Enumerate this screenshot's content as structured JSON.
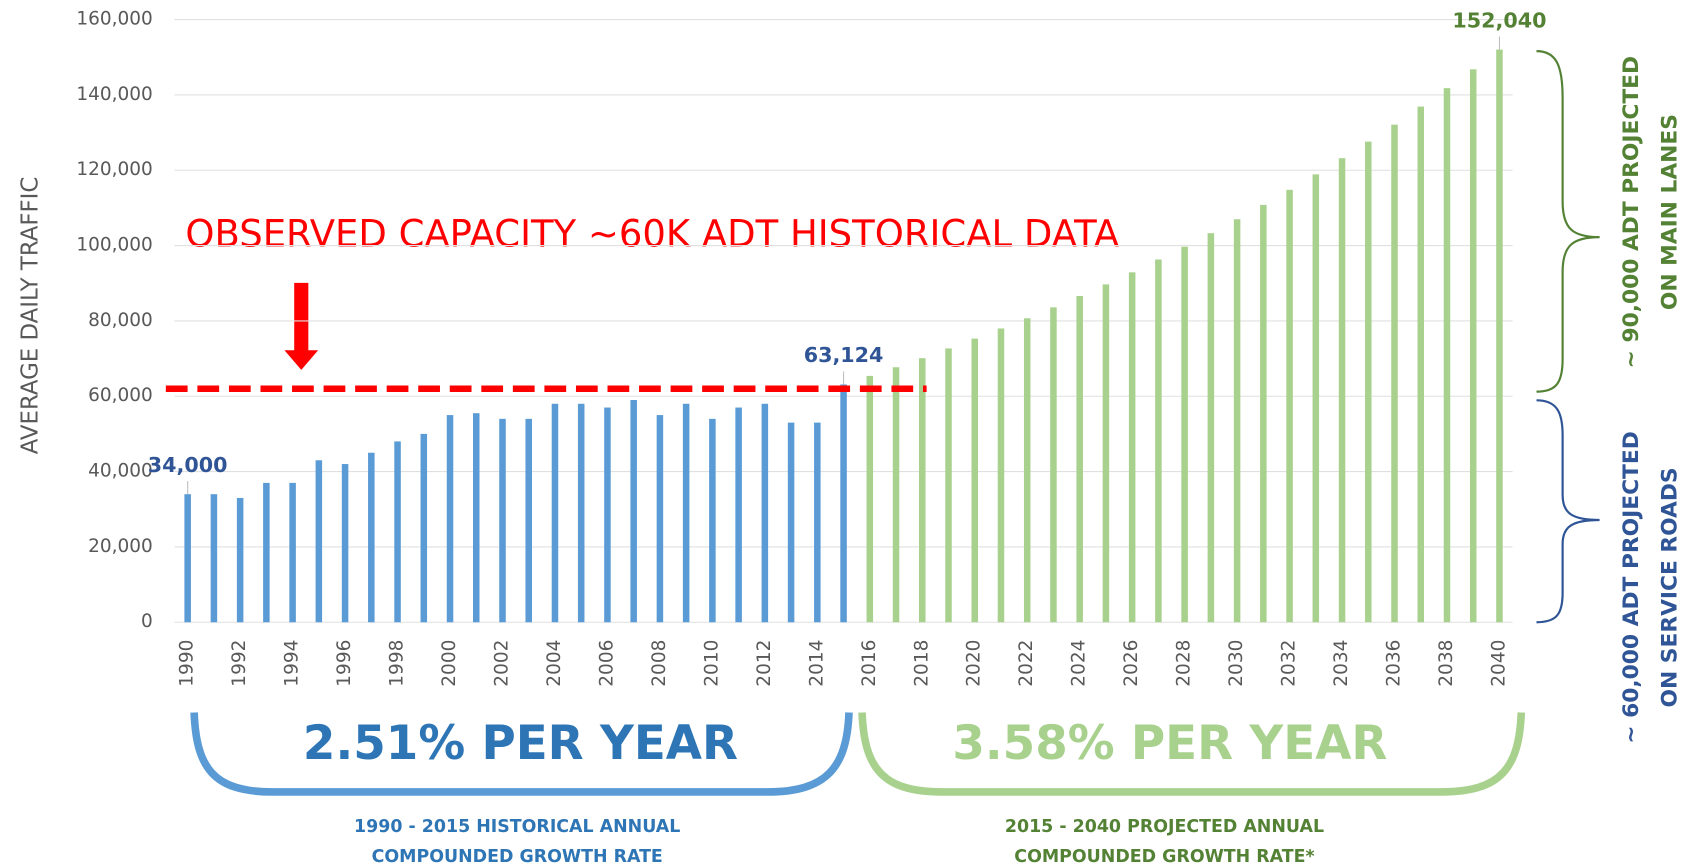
{
  "chart_data": {
    "type": "bar",
    "y_axis_label": "AVERAGE DAILY TRAFFIC",
    "categories": [
      "1990",
      null,
      "1992",
      null,
      "1994",
      null,
      "1996",
      null,
      "1998",
      null,
      "2000",
      null,
      "2002",
      null,
      "2004",
      null,
      "2006",
      null,
      "2008",
      null,
      "2010",
      null,
      "2012",
      null,
      "2014",
      null,
      "2016",
      null,
      "2018",
      null,
      "2020",
      null,
      "2022",
      null,
      "2024",
      null,
      "2026",
      null,
      "2028",
      null,
      "2030",
      null,
      "2032",
      null,
      "2034",
      null,
      "2036",
      null,
      "2038",
      null,
      "2040"
    ],
    "series": [
      {
        "color": "#5b9bd5",
        "label_color": "#2f5597",
        "values": [
          34000,
          34000,
          33000,
          37000,
          37000,
          43000,
          42000,
          45000,
          48000,
          50000,
          55000,
          55500,
          54000,
          54000,
          58000,
          58000,
          57000,
          59000,
          55000,
          58000,
          54000,
          57000,
          58000,
          53000,
          53000,
          63124,
          null,
          null,
          null,
          null,
          null,
          null,
          null,
          null,
          null,
          null,
          null,
          null,
          null,
          null,
          null,
          null,
          null,
          null,
          null,
          null,
          null,
          null,
          null,
          null,
          null
        ],
        "value_labels": [
          "34,000",
          null,
          null,
          null,
          null,
          null,
          null,
          null,
          null,
          null,
          null,
          null,
          null,
          null,
          null,
          null,
          null,
          null,
          null,
          null,
          null,
          null,
          null,
          null,
          null,
          "63,124",
          null,
          null,
          null,
          null,
          null,
          null,
          null,
          null,
          null,
          null,
          null,
          null,
          null,
          null,
          null,
          null,
          null,
          null,
          null,
          null,
          null,
          null,
          null,
          null,
          null
        ]
      },
      {
        "color": "#a9d18e",
        "label_color": "#548235",
        "values": [
          null,
          null,
          null,
          null,
          null,
          null,
          null,
          null,
          null,
          null,
          null,
          null,
          null,
          null,
          null,
          null,
          null,
          null,
          null,
          null,
          null,
          null,
          null,
          null,
          null,
          null,
          65400,
          67700,
          70100,
          72700,
          75300,
          78000,
          80700,
          83600,
          86600,
          89700,
          92900,
          96300,
          99700,
          103300,
          107000,
          110800,
          114800,
          118900,
          123200,
          127600,
          132100,
          136900,
          141800,
          146800,
          152040
        ],
        "value_labels": [
          null,
          null,
          null,
          null,
          null,
          null,
          null,
          null,
          null,
          null,
          null,
          null,
          null,
          null,
          null,
          null,
          null,
          null,
          null,
          null,
          null,
          null,
          null,
          null,
          null,
          null,
          null,
          null,
          null,
          null,
          null,
          null,
          null,
          null,
          null,
          null,
          null,
          null,
          null,
          null,
          null,
          null,
          null,
          null,
          null,
          null,
          null,
          null,
          null,
          null,
          "152,040"
        ]
      }
    ],
    "ylim": [
      0,
      160000
    ],
    "yticks": [
      0,
      {
        "value": 20000,
        "label": "20,000"
      },
      {
        "value": 40000,
        "label": "40,000"
      },
      {
        "value": 60000,
        "label": "60,000"
      },
      {
        "value": 80000,
        "label": "80,000"
      },
      {
        "value": 100000,
        "label": "100,000"
      },
      {
        "value": 120000,
        "label": "120,000"
      },
      {
        "value": 140000,
        "label": "140,000"
      },
      {
        "value": 160000,
        "label": "160,000"
      }
    ],
    "grid": true,
    "capacity_line": {
      "value": 62000,
      "color": "#ff0000",
      "text": "OBSERVED CAPACITY ~60K ADT HISTORICAL DATA"
    },
    "historical_rate": {
      "text": "2.51% PER YEAR",
      "caption": [
        "1990 - 2015 HISTORICAL ANNUAL",
        "COMPOUNDED GROWTH RATE"
      ]
    },
    "projected_rate": {
      "text": "3.58% PER YEAR",
      "caption": [
        "2015 - 2040 PROJECTED ANNUAL",
        "COMPOUNDED GROWTH RATE*"
      ]
    },
    "main_lanes": [
      "~ 90,000 ADT PROJECTED",
      "ON MAIN LANES"
    ],
    "service_roads": [
      "~ 60,000 ADT PROJECTED",
      "ON SERVICE ROADS"
    ]
  }
}
